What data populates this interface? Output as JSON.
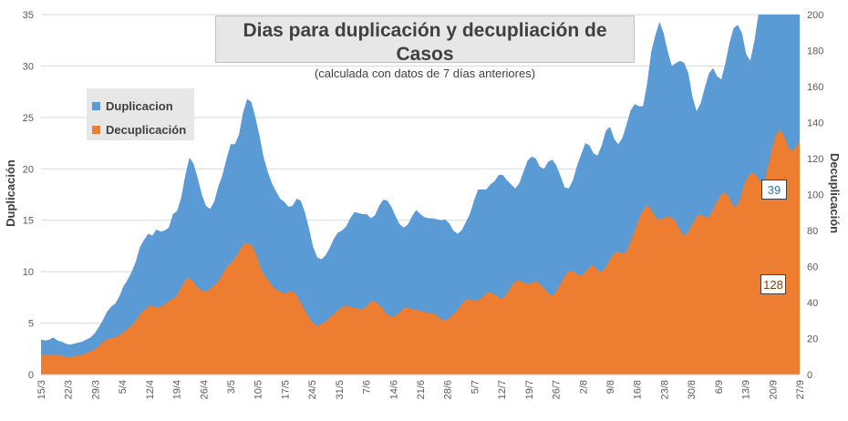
{
  "chart_data": {
    "type": "area",
    "title": "Dias para duplicación y decupliación de Casos",
    "subtitle": "(calculada con datos de 7 días anteriores)",
    "ylabel_left": "Duplicación",
    "ylabel_right": "Decuplicación",
    "y_left_range": [
      0,
      35
    ],
    "y_left_ticks": [
      "0",
      "5",
      "10",
      "15",
      "20",
      "25",
      "30",
      "35"
    ],
    "y_right_range": [
      0,
      200
    ],
    "y_right_ticks": [
      "0",
      "20",
      "40",
      "60",
      "80",
      "100",
      "120",
      "140",
      "160",
      "180",
      "200"
    ],
    "x_tick_labels": [
      "15/3",
      "22/3",
      "29/3",
      "5/4",
      "12/4",
      "19/4",
      "26/4",
      "3/5",
      "10/5",
      "17/5",
      "24/5",
      "31/5",
      "7/6",
      "14/6",
      "21/6",
      "28/6",
      "5/7",
      "12/7",
      "19/7",
      "26/7",
      "2/8",
      "9/8",
      "16/8",
      "23/8",
      "30/8",
      "6/9",
      "13/9",
      "20/9",
      "27/9"
    ],
    "grid": true,
    "legend_position": "top-left",
    "colors": {
      "duplicacion": "#5b9bd5",
      "decuplicacion": "#ed7d31"
    },
    "series": [
      {
        "name": "Duplicacion",
        "axis": "left",
        "values": [
          3.4,
          3.3,
          3.4,
          3.6,
          3.3,
          3.2,
          3.0,
          2.9,
          3.0,
          3.1,
          3.2,
          3.4,
          3.6,
          4.0,
          4.6,
          5.3,
          6.1,
          6.6,
          6.9,
          7.6,
          8.6,
          9.2,
          10.0,
          11.0,
          12.4,
          13.1,
          13.7,
          13.5,
          14.1,
          13.9,
          14.0,
          14.3,
          15.6,
          15.9,
          17.2,
          19.4,
          21.1,
          20.5,
          19.1,
          17.5,
          16.4,
          16.1,
          16.8,
          18.3,
          19.4,
          21.0,
          22.4,
          22.4,
          23.3,
          25.5,
          26.8,
          26.5,
          25.0,
          23.2,
          21.1,
          19.7,
          18.6,
          17.8,
          17.1,
          16.8,
          16.3,
          16.4,
          17.1,
          16.9,
          15.8,
          14.2,
          12.4,
          11.4,
          11.2,
          11.6,
          12.3,
          13.2,
          13.8,
          14.0,
          14.4,
          15.2,
          15.8,
          15.7,
          15.6,
          15.6,
          15.2,
          15.5,
          16.4,
          17.0,
          16.9,
          16.3,
          15.4,
          14.6,
          14.3,
          14.6,
          15.4,
          16.0,
          15.6,
          15.3,
          15.2,
          15.2,
          15.1,
          15.0,
          15.1,
          14.7,
          14.0,
          13.7,
          14.0,
          14.8,
          15.6,
          16.9,
          18.0,
          18.0,
          18.0,
          18.5,
          18.8,
          19.4,
          19.4,
          18.9,
          18.5,
          18.1,
          18.6,
          19.7,
          20.8,
          21.2,
          21.0,
          20.2,
          20.0,
          20.7,
          20.9,
          20.3,
          19.3,
          18.2,
          18.1,
          18.9,
          20.3,
          21.4,
          22.5,
          22.3,
          21.5,
          21.3,
          22.3,
          23.7,
          24.1,
          22.9,
          22.4,
          23.0,
          24.3,
          25.7,
          26.3,
          26.1,
          26.1,
          28.3,
          31.4,
          33.0,
          34.3,
          33.2,
          31.4,
          30.0,
          30.3,
          30.5,
          30.3,
          29.3,
          27.0,
          25.6,
          26.4,
          27.9,
          29.3,
          29.8,
          29.0,
          28.7,
          30.3,
          32.3,
          33.7,
          34.0,
          33.2,
          31.2,
          30.5,
          32.4,
          35.0,
          35.0,
          35.0,
          35.0,
          35.0,
          35.0,
          35.0,
          35.0,
          35.0,
          35.0,
          35.0
        ]
      },
      {
        "name": "Decuplicación",
        "axis": "right",
        "values": [
          11,
          11,
          11,
          11,
          11,
          10.5,
          10,
          10,
          10,
          10.5,
          11,
          11.5,
          12.5,
          13.5,
          15,
          17,
          19,
          20,
          20.5,
          21,
          22.5,
          24,
          26,
          28,
          31,
          34,
          36,
          38,
          38,
          37,
          38,
          39,
          41,
          42,
          44,
          48,
          52,
          54,
          52,
          49,
          47,
          46,
          47,
          49,
          51,
          54,
          58,
          61,
          63,
          66,
          70,
          73,
          73,
          71,
          66,
          59,
          55,
          52,
          49,
          47,
          46,
          45,
          46,
          46,
          44,
          40,
          36,
          32,
          29,
          27,
          28,
          29,
          31,
          33,
          35,
          37,
          38,
          38,
          37,
          37,
          36,
          37,
          39,
          41,
          40,
          38,
          35,
          33,
          32,
          33,
          35,
          37,
          37,
          36,
          36,
          35,
          35,
          34,
          34,
          33,
          31,
          30,
          31,
          33,
          35,
          38,
          41,
          42,
          41,
          41,
          42,
          44,
          46,
          45,
          44,
          42,
          43,
          46,
          50,
          52,
          52,
          51,
          50,
          51,
          52,
          50,
          48,
          45,
          44,
          46,
          50,
          54,
          57,
          58,
          56,
          55,
          56,
          59,
          61,
          59,
          57,
          58,
          62,
          66,
          68,
          68,
          67,
          70,
          76,
          82,
          88,
          92,
          94,
          91,
          87,
          86,
          87,
          88,
          87,
          85,
          80,
          77,
          79,
          83,
          87,
          89,
          88,
          87,
          90,
          95,
          99,
          101,
          100,
          95,
          93,
          97,
          105,
          110,
          112,
          111,
          108,
          106,
          115,
          125,
          133,
          136,
          133,
          127,
          124,
          126,
          130
        ]
      }
    ],
    "data_labels": [
      {
        "series": "Duplicacion",
        "text": "39"
      },
      {
        "series": "Decuplicación",
        "text": "128"
      }
    ]
  }
}
